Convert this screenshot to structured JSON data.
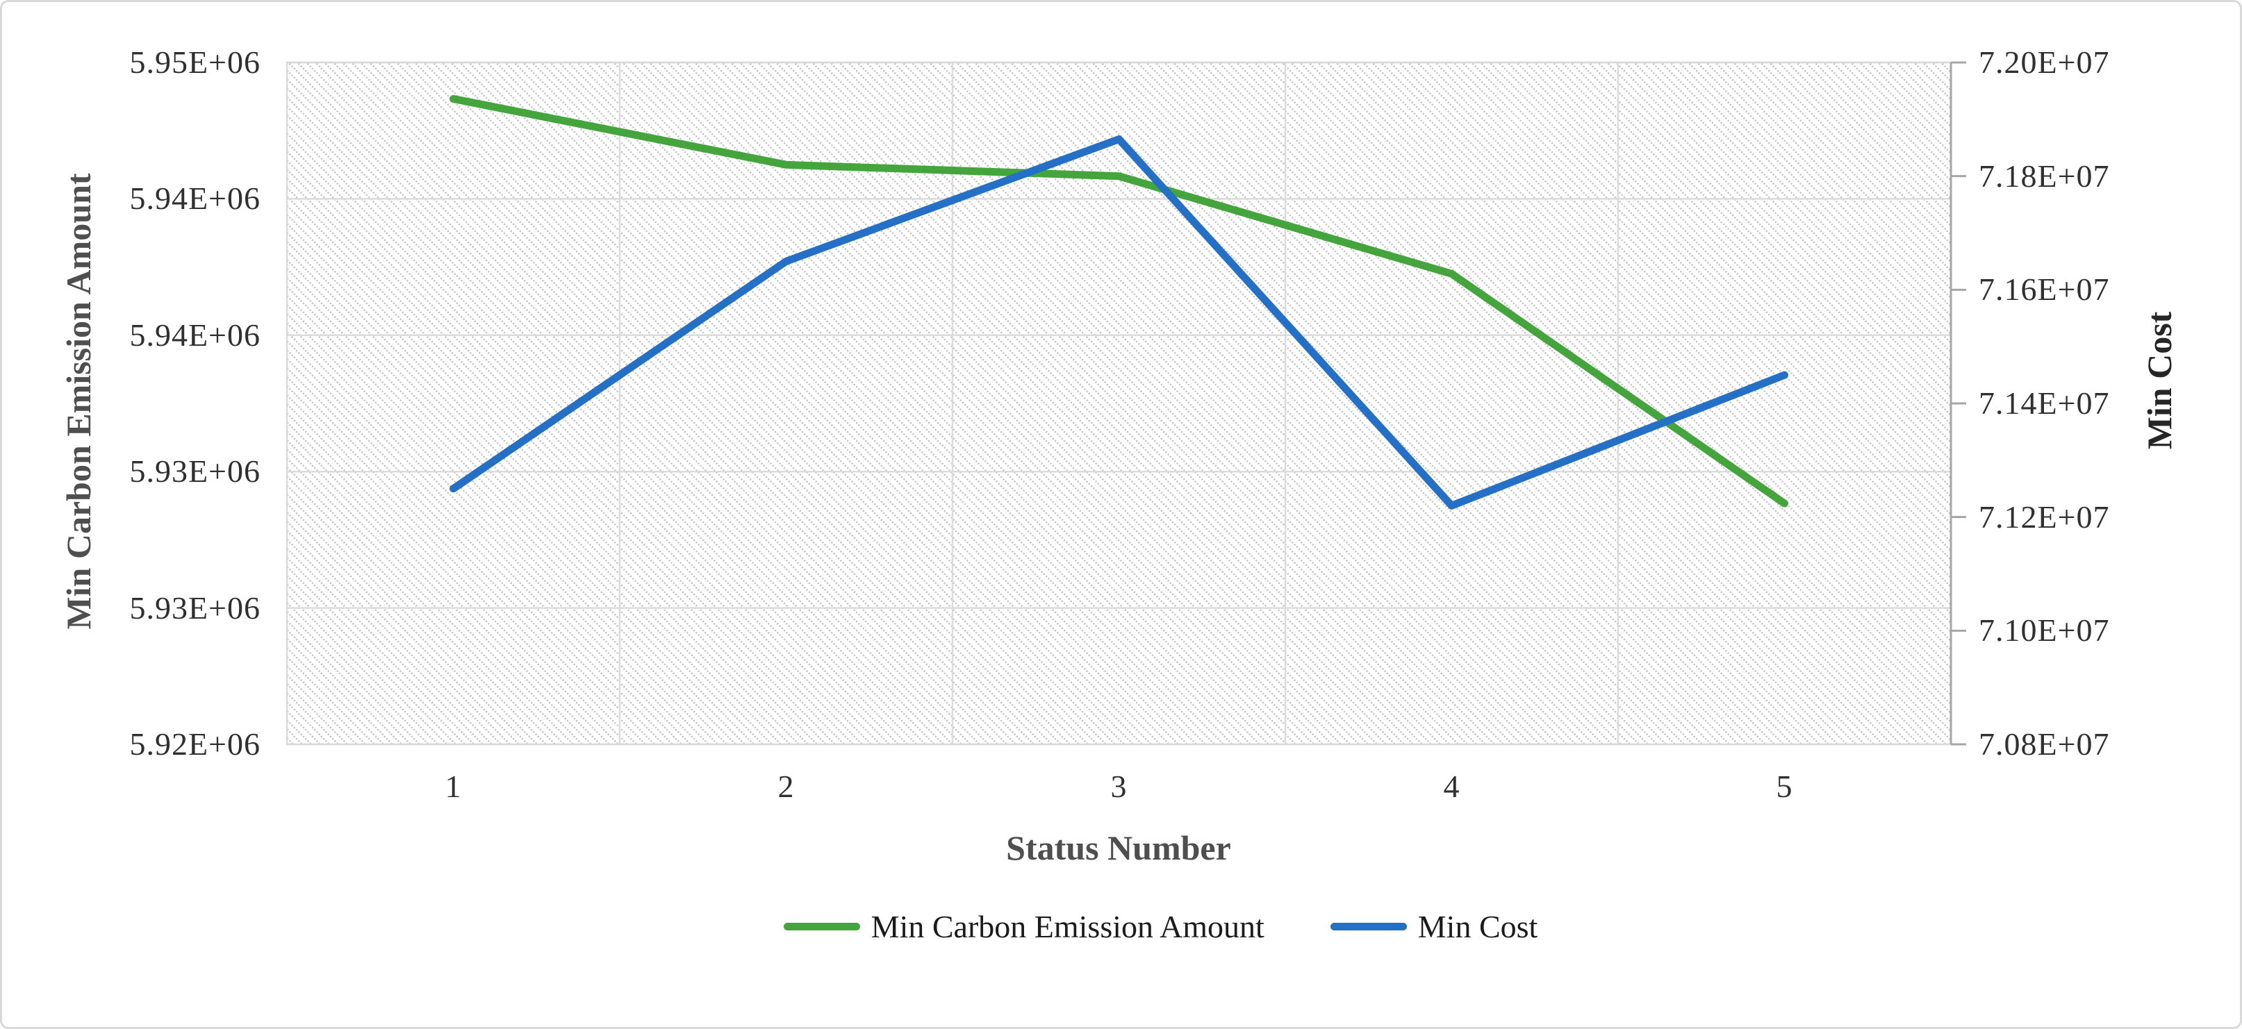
{
  "chart_data": {
    "type": "line",
    "categories": [
      "1",
      "2",
      "3",
      "4",
      "5"
    ],
    "series": [
      {
        "name": "Min Carbon Emission Amount",
        "axis": "left",
        "color": "#43a53c",
        "values": [
          5948400,
          5945500,
          5945000,
          5940700,
          5930600
        ]
      },
      {
        "name": "Min Cost",
        "axis": "right",
        "color": "#2470c6",
        "values": [
          71250000,
          71650000,
          71865000,
          71220000,
          71450000
        ]
      }
    ],
    "x_axis": {
      "title": "Status Number",
      "tick_labels": [
        "1",
        "2",
        "3",
        "4",
        "5"
      ]
    },
    "left_axis": {
      "title": "Min Carbon Emission Amount",
      "min": 5920000,
      "max": 5950000,
      "tick_step": 6000,
      "tick_labels": [
        "5.95E+06",
        "5.94E+06",
        "5.94E+06",
        "5.93E+06",
        "5.93E+06",
        "5.92E+06"
      ]
    },
    "right_axis": {
      "title": "Min Cost",
      "min": 70800000,
      "max": 72000000,
      "tick_step": 200000,
      "tick_labels": [
        "7.20E+07",
        "7.18E+07",
        "7.16E+07",
        "7.14E+07",
        "7.12E+07",
        "7.10E+07",
        "7.08E+07"
      ]
    },
    "legend": {
      "position": "bottom"
    },
    "grid": true,
    "plot_background": "diagonal-dot-hatch"
  },
  "colors": {
    "background": "#ffffff",
    "figure_border": "#d9d9d9",
    "plot_border": "#d9d9d9",
    "grid": "#dcdcdc",
    "axis_line": "#a6a6a6",
    "hatch_dot": "#c6c6c6",
    "tick_text": "#303030",
    "axis_title_text": "#4f4f4f",
    "right_axis_title_text": "#262626",
    "legend_text": "#1c1c1c"
  }
}
